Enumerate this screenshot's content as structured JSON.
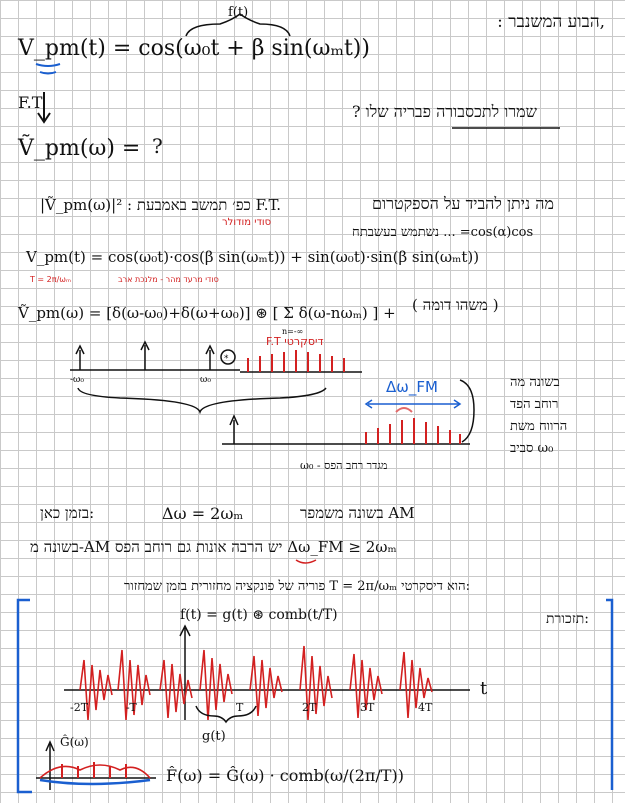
{
  "page": {
    "top_title": ",הבוע המשנבר :",
    "f_label": "f(t)",
    "eq1": "V_pm(t) = cos(ω₀t + β sin(ωₘt))",
    "ft_label": "F.T",
    "eq2": "Ṽ_pm(ω) =",
    "question_mark": "?",
    "question_he": "? שמרו לתכסבורה פבריה שלו",
    "line3_he": "מה ניתן להביד על הספקטרום",
    "line3_eq": "|Ṽ_pm(ω)|² : כפ׳ תמשב באמבעת F.T.",
    "line4_he": "נשתמש בעשבתח ... =cos(α)cos",
    "red_note1": "סודי מודולר",
    "eq4": "V_pm(t) = cos(ω₀t)·cos(β sin(ωₘt)) + sin(ω₀t)·sin(β sin(ωₘt))",
    "red_small1": "סודי מרעד מהר - מלנכת ארב",
    "red_T": "T = 2π/ωₘ",
    "eq5": "Ṽ_pm(ω) = [δ(ω-ω₀)+δ(ω+ω₀)] ⊛ [ Σ δ(ω-nωₘ) ] +",
    "sum_lim": "n=-∞",
    "bracket_he": "( משהו דומה )",
    "red_note2": "F.T דיסקרטי",
    "axis1_labels": [
      "-ω₀",
      "ω₀"
    ],
    "delta_w_fm": "Δω_FM",
    "side_he": [
      "בשונה מה",
      "רוחב הפד",
      "הרווח משת",
      "סביב ω₀"
    ],
    "axis2_label": "ω₀ - מגדר רחב הפס",
    "line6_he": "בשונה משמפר AM",
    "line6_eq": "Δω = 2ωₘ",
    "line6_right": "בזמן כאן:",
    "line7": "בשונה מ-AM יש הרבה אונות גם רוחב הפס Δω_FM ≥ 2ωₘ",
    "line8_he": "פוריה של פונקציה מחזורית בזמן שמחזור T = 2π/ωₘ הוא דיסקרטי:",
    "line9_he": "תזכורת:",
    "eq9": "f(t) = g(t) ⊛ comb(t/T)",
    "axis3_labels": [
      "-2T",
      "-T",
      "T",
      "2T",
      "3T",
      "4T"
    ],
    "axis3_t": "t",
    "g_label": "g(t)",
    "G_label": "Ĝ(ω)",
    "eq10": "F̂(ω) = Ĝ(ω) · comb(ω/(2π/T))"
  }
}
